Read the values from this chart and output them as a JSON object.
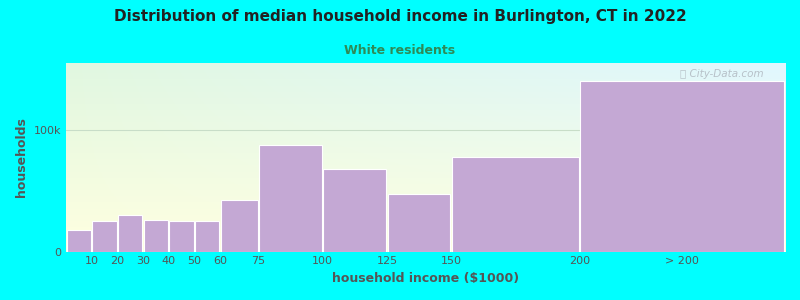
{
  "title": "Distribution of median household income in Burlington, CT in 2022",
  "subtitle": "White residents",
  "xlabel": "household income ($1000)",
  "ylabel": "households",
  "background_color": "#00FFFF",
  "bar_color": "#c4a8d4",
  "bar_edge_color": "#ffffff",
  "title_color": "#222222",
  "subtitle_color": "#2e8b57",
  "axis_color": "#555555",
  "grid_color": "#c8ddc8",
  "categories": [
    "10",
    "20",
    "30",
    "40",
    "50",
    "60",
    "75",
    "100",
    "125",
    "150",
    "200",
    "> 200"
  ],
  "bar_lefts": [
    0,
    10,
    20,
    30,
    40,
    50,
    60,
    75,
    100,
    125,
    150,
    200
  ],
  "bar_widths": [
    10,
    10,
    10,
    10,
    10,
    10,
    15,
    25,
    25,
    25,
    50,
    80
  ],
  "values": [
    18000,
    25000,
    30000,
    26000,
    25000,
    25000,
    42000,
    88000,
    68000,
    47000,
    78000,
    140000
  ],
  "xtick_positions": [
    10,
    20,
    30,
    40,
    50,
    60,
    75,
    100,
    125,
    150,
    200,
    240
  ],
  "xtick_labels": [
    "10",
    "20",
    "30",
    "40",
    "50",
    "60",
    "75",
    "100",
    "125",
    "150",
    "200",
    "> 200"
  ],
  "ytick_labels": [
    "0",
    "100k"
  ],
  "ytick_values": [
    0,
    100000
  ],
  "ymax": 155000,
  "xmin": 0,
  "xmax": 280
}
